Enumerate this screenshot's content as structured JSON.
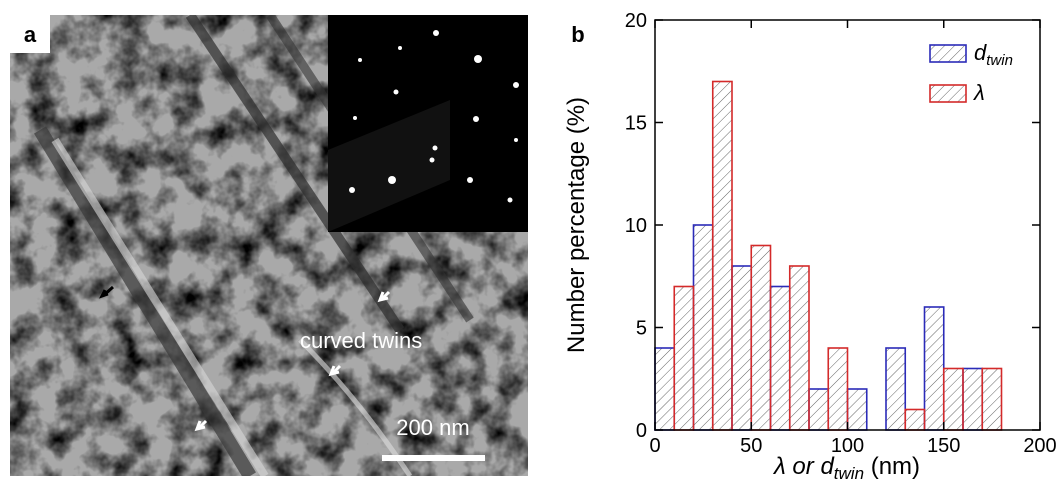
{
  "panel_a": {
    "label": "a",
    "annotation": "curved twins",
    "scale_bar": "200 nm"
  },
  "chart_data": {
    "type": "histogram",
    "panel_label": "b",
    "ylabel": "Number percentage (%)",
    "xlabel": {
      "text": "λ or d",
      "sub": "twin",
      "tail": " (nm)"
    },
    "bins": [
      0,
      10,
      20,
      30,
      40,
      50,
      60,
      70,
      80,
      90,
      100,
      110,
      120,
      130,
      140,
      150,
      160,
      170,
      180
    ],
    "series": [
      {
        "name": "d",
        "name_sub": "twin",
        "color": "#2b2bb8",
        "values": [
          4,
          0,
          10,
          0,
          8,
          0,
          7,
          0,
          2,
          0,
          2,
          0,
          4,
          0,
          6,
          0,
          3,
          0
        ]
      },
      {
        "name": "λ",
        "color": "#d42a2a",
        "values": [
          0,
          7,
          0,
          17,
          0,
          9,
          0,
          8,
          0,
          4,
          0,
          0,
          0,
          1,
          0,
          3,
          0,
          3
        ]
      }
    ],
    "xlim": [
      0,
      200
    ],
    "xticks": [
      0,
      50,
      100,
      150,
      200
    ],
    "ylim": [
      0,
      20
    ],
    "yticks": [
      0,
      5,
      10,
      15,
      20
    ],
    "legend": "top-right"
  }
}
